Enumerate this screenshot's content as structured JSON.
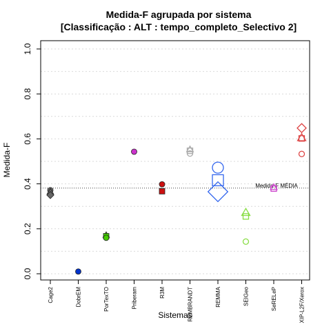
{
  "chart_data": {
    "type": "scatter",
    "title_line1": "Medida-F agrupada por sistema",
    "title_line2": "[Classificação : ALT : tempo_completo_Selectivo 2]",
    "xlabel": "Sistemas",
    "ylabel": "Medida-F",
    "ylim": [
      0,
      1.0
    ],
    "yticks": [
      "0.0",
      "0.2",
      "0.4",
      "0.6",
      "0.8",
      "1.0"
    ],
    "ytick_values": [
      0.0,
      0.2,
      0.4,
      0.6,
      0.8,
      1.0
    ],
    "grid": "horizontal dotted",
    "categories": [
      "Cage2",
      "DobrEM",
      "PorTexTO",
      "Priberam",
      "R3M",
      "REMBRANDT",
      "REMMA",
      "SEIGeo",
      "SeRELeP",
      "XIP-L2F/Xerox"
    ],
    "mean_line": {
      "value": 0.381,
      "label": "Medida-F MÉDIA"
    },
    "points": [
      {
        "category": "Cage2",
        "value": 0.372,
        "shape": "circle",
        "color": "#666666",
        "filled": true,
        "size": 4
      },
      {
        "category": "Cage2",
        "value": 0.365,
        "shape": "triangle",
        "color": "#666666",
        "filled": true,
        "size": 4
      },
      {
        "category": "Cage2",
        "value": 0.35,
        "shape": "diamond",
        "color": "#666666",
        "filled": true,
        "size": 4
      },
      {
        "category": "DobrEM",
        "value": 0.01,
        "shape": "circle",
        "color": "#0033cc",
        "filled": true,
        "size": 4
      },
      {
        "category": "PorTexTO",
        "value": 0.172,
        "shape": "triangle",
        "color": "#44cc00",
        "filled": true,
        "size": 4
      },
      {
        "category": "PorTexTO",
        "value": 0.167,
        "shape": "square",
        "color": "#44cc00",
        "filled": true,
        "size": 4
      },
      {
        "category": "PorTexTO",
        "value": 0.16,
        "shape": "circle",
        "color": "#44cc00",
        "filled": true,
        "size": 4
      },
      {
        "category": "Priberam",
        "value": 0.543,
        "shape": "circle",
        "color": "#cc33cc",
        "filled": true,
        "size": 4
      },
      {
        "category": "R3M",
        "value": 0.398,
        "shape": "circle",
        "color": "#cc1111",
        "filled": true,
        "size": 4
      },
      {
        "category": "R3M",
        "value": 0.367,
        "shape": "square",
        "color": "#cc1111",
        "filled": true,
        "size": 4
      },
      {
        "category": "REMBRANDT",
        "value": 0.553,
        "shape": "triangle",
        "color": "#aaaaaa",
        "filled": false,
        "size": 4
      },
      {
        "category": "REMBRANDT",
        "value": 0.547,
        "shape": "square",
        "color": "#aaaaaa",
        "filled": false,
        "size": 4
      },
      {
        "category": "REMBRANDT",
        "value": 0.535,
        "shape": "circle",
        "color": "#aaaaaa",
        "filled": false,
        "size": 4
      },
      {
        "category": "REMMA",
        "value": 0.472,
        "shape": "circle",
        "color": "#3366ee",
        "filled": false,
        "size": 8
      },
      {
        "category": "REMMA",
        "value": 0.416,
        "shape": "square",
        "color": "#3366ee",
        "filled": false,
        "size": 8
      },
      {
        "category": "REMMA",
        "value": 0.365,
        "shape": "diamond",
        "color": "#3366ee",
        "filled": false,
        "size": 11
      },
      {
        "category": "SEIGeo",
        "value": 0.272,
        "shape": "triangle",
        "color": "#88dd44",
        "filled": false,
        "size": 5
      },
      {
        "category": "SEIGeo",
        "value": 0.255,
        "shape": "square",
        "color": "#88dd44",
        "filled": false,
        "size": 4
      },
      {
        "category": "SEIGeo",
        "value": 0.143,
        "shape": "circle",
        "color": "#88dd44",
        "filled": false,
        "size": 4
      },
      {
        "category": "SeRELeP",
        "value": 0.385,
        "shape": "triangle",
        "color": "#cc44cc",
        "filled": false,
        "size": 4
      },
      {
        "category": "SeRELeP",
        "value": 0.379,
        "shape": "square",
        "color": "#cc44cc",
        "filled": false,
        "size": 4
      },
      {
        "category": "XIP-L2F/Xerox",
        "value": 0.648,
        "shape": "diamond",
        "color": "#dd4444",
        "filled": false,
        "size": 5
      },
      {
        "category": "XIP-L2F/Xerox",
        "value": 0.605,
        "shape": "triangle",
        "color": "#dd4444",
        "filled": false,
        "size": 5
      },
      {
        "category": "XIP-L2F/Xerox",
        "value": 0.602,
        "shape": "square",
        "color": "#dd4444",
        "filled": false,
        "size": 4
      },
      {
        "category": "XIP-L2F/Xerox",
        "value": 0.533,
        "shape": "circle",
        "color": "#dd4444",
        "filled": false,
        "size": 4
      }
    ]
  }
}
